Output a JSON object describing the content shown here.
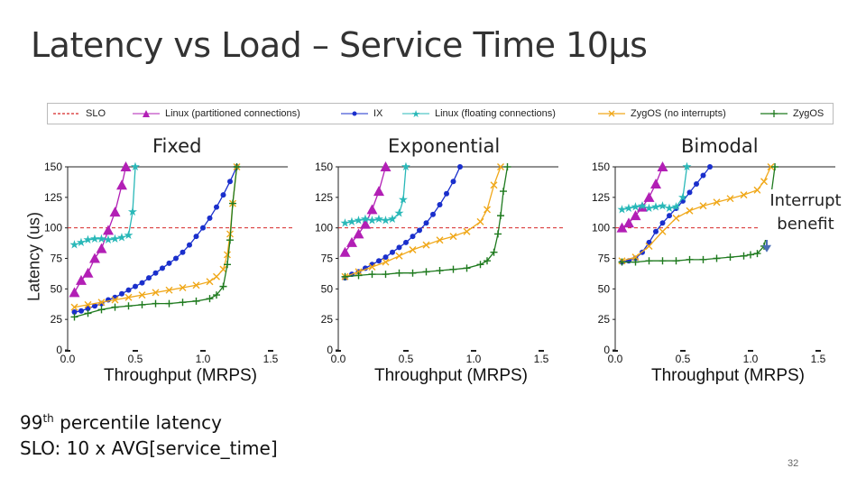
{
  "slide": {
    "title": "Latency vs Load – Service Time 10µs",
    "ylabel": "Latency (us)",
    "note_line1_pre": "99",
    "note_line1_sup": "th",
    "note_line1_post": " percentile latency",
    "note_line2": "SLO: 10 x AVG[service_time]",
    "annotation_line1": "Interrupt",
    "annotation_line2": "benefit",
    "page_number": "32"
  },
  "legend": [
    {
      "label": "SLO",
      "color": "#d62728",
      "style": "dashed",
      "marker": "none"
    },
    {
      "label": "Linux (partitioned connections)",
      "color": "#b21fb5",
      "marker": "triangle"
    },
    {
      "label": "IX",
      "color": "#1a2fcc",
      "marker": "circle"
    },
    {
      "label": "Linux (floating connections)",
      "color": "#29b8b8",
      "marker": "star"
    },
    {
      "label": "ZygOS (no interrupts)",
      "color": "#f0a81a",
      "marker": "x"
    },
    {
      "label": "ZygOS",
      "color": "#1e7a1e",
      "marker": "plus"
    }
  ],
  "chart_data": [
    {
      "type": "line",
      "title": "Fixed",
      "xlabel": "Throughput (MRPS)",
      "ylabel": "Latency (us)",
      "xlim": [
        0.0,
        1.6
      ],
      "ylim": [
        0,
        150
      ],
      "xticks": [
        "0.0",
        "0.5",
        "1.0",
        "1.5"
      ],
      "yticks": [
        "0",
        "25",
        "50",
        "75",
        "100",
        "125",
        "150"
      ],
      "slo": 100,
      "series": [
        {
          "name": "Linux (partitioned connections)",
          "x": [
            0.05,
            0.1,
            0.15,
            0.2,
            0.25,
            0.3,
            0.35,
            0.4,
            0.43
          ],
          "y": [
            47,
            57,
            63,
            75,
            83,
            98,
            113,
            135,
            150
          ]
        },
        {
          "name": "IX",
          "x": [
            0.05,
            0.1,
            0.15,
            0.2,
            0.25,
            0.3,
            0.35,
            0.4,
            0.45,
            0.5,
            0.55,
            0.6,
            0.65,
            0.7,
            0.75,
            0.8,
            0.85,
            0.9,
            0.95,
            1.0,
            1.05,
            1.1,
            1.15,
            1.2,
            1.25
          ],
          "y": [
            31,
            32,
            34,
            36,
            38,
            41,
            43,
            46,
            49,
            52,
            55,
            59,
            63,
            67,
            71,
            75,
            80,
            86,
            93,
            100,
            108,
            117,
            127,
            138,
            150
          ]
        },
        {
          "name": "Linux (floating connections)",
          "x": [
            0.05,
            0.1,
            0.15,
            0.2,
            0.25,
            0.3,
            0.35,
            0.4,
            0.45,
            0.48,
            0.5
          ],
          "y": [
            86,
            88,
            90,
            91,
            91,
            90,
            91,
            92,
            94,
            113,
            150
          ]
        },
        {
          "name": "ZygOS (no interrupts)",
          "x": [
            0.05,
            0.15,
            0.25,
            0.35,
            0.45,
            0.55,
            0.65,
            0.75,
            0.85,
            0.95,
            1.05,
            1.1,
            1.15,
            1.18,
            1.2,
            1.22,
            1.25
          ],
          "y": [
            35,
            37,
            39,
            41,
            43,
            45,
            47,
            49,
            51,
            53,
            56,
            60,
            66,
            78,
            95,
            120,
            150
          ]
        },
        {
          "name": "ZygOS",
          "x": [
            0.05,
            0.15,
            0.25,
            0.35,
            0.45,
            0.55,
            0.65,
            0.75,
            0.85,
            0.95,
            1.05,
            1.1,
            1.15,
            1.18,
            1.2,
            1.22,
            1.25
          ],
          "y": [
            27,
            30,
            33,
            35,
            36,
            37,
            38,
            38,
            39,
            40,
            42,
            45,
            52,
            70,
            90,
            120,
            150
          ]
        }
      ]
    },
    {
      "type": "line",
      "title": "Exponential",
      "xlabel": "Throughput (MRPS)",
      "ylabel": "Latency (us)",
      "xlim": [
        0.0,
        1.6
      ],
      "ylim": [
        0,
        150
      ],
      "xticks": [
        "0.0",
        "0.5",
        "1.0",
        "1.5"
      ],
      "yticks": [
        "0",
        "25",
        "50",
        "75",
        "100",
        "125",
        "150"
      ],
      "slo": 100,
      "series": [
        {
          "name": "Linux (partitioned connections)",
          "x": [
            0.05,
            0.1,
            0.15,
            0.2,
            0.25,
            0.3,
            0.35
          ],
          "y": [
            80,
            88,
            95,
            103,
            115,
            130,
            150
          ]
        },
        {
          "name": "IX",
          "x": [
            0.05,
            0.1,
            0.15,
            0.2,
            0.25,
            0.3,
            0.35,
            0.4,
            0.45,
            0.5,
            0.55,
            0.6,
            0.65,
            0.7,
            0.75,
            0.8,
            0.85,
            0.9
          ],
          "y": [
            59,
            62,
            64,
            67,
            70,
            73,
            76,
            80,
            84,
            88,
            93,
            98,
            104,
            111,
            119,
            128,
            138,
            150
          ]
        },
        {
          "name": "Linux (floating connections)",
          "x": [
            0.05,
            0.1,
            0.15,
            0.2,
            0.25,
            0.3,
            0.35,
            0.4,
            0.45,
            0.48,
            0.5
          ],
          "y": [
            104,
            105,
            106,
            107,
            106,
            107,
            106,
            107,
            112,
            123,
            150
          ]
        },
        {
          "name": "ZygOS (no interrupts)",
          "x": [
            0.05,
            0.15,
            0.25,
            0.35,
            0.45,
            0.55,
            0.65,
            0.75,
            0.85,
            0.95,
            1.05,
            1.1,
            1.15,
            1.2
          ],
          "y": [
            60,
            64,
            68,
            72,
            77,
            82,
            86,
            90,
            93,
            97,
            105,
            115,
            135,
            150
          ]
        },
        {
          "name": "ZygOS",
          "x": [
            0.05,
            0.15,
            0.25,
            0.35,
            0.45,
            0.55,
            0.65,
            0.75,
            0.85,
            0.95,
            1.05,
            1.1,
            1.15,
            1.18,
            1.2,
            1.22,
            1.25
          ],
          "y": [
            60,
            61,
            62,
            62,
            63,
            63,
            64,
            65,
            66,
            67,
            70,
            73,
            80,
            95,
            110,
            130,
            150
          ]
        }
      ]
    },
    {
      "type": "line",
      "title": "Bimodal",
      "xlabel": "Throughput (MRPS)",
      "ylabel": "Latency (us)",
      "xlim": [
        0.0,
        1.6
      ],
      "ylim": [
        0,
        150
      ],
      "xticks": [
        "0.0",
        "0.5",
        "1.0",
        "1.5"
      ],
      "yticks": [
        "0",
        "25",
        "50",
        "75",
        "100",
        "125",
        "150"
      ],
      "slo": 100,
      "series": [
        {
          "name": "Linux (partitioned connections)",
          "x": [
            0.05,
            0.1,
            0.15,
            0.2,
            0.25,
            0.3,
            0.35
          ],
          "y": [
            100,
            104,
            110,
            117,
            125,
            136,
            150
          ]
        },
        {
          "name": "IX",
          "x": [
            0.05,
            0.1,
            0.15,
            0.2,
            0.25,
            0.3,
            0.35,
            0.4,
            0.45,
            0.5,
            0.55,
            0.6,
            0.65,
            0.7
          ],
          "y": [
            72,
            73,
            75,
            80,
            88,
            97,
            104,
            110,
            116,
            122,
            129,
            136,
            143,
            150
          ]
        },
        {
          "name": "Linux (floating connections)",
          "x": [
            0.05,
            0.1,
            0.15,
            0.2,
            0.25,
            0.3,
            0.35,
            0.4,
            0.45,
            0.5,
            0.53
          ],
          "y": [
            115,
            116,
            117,
            118,
            116,
            117,
            118,
            116,
            117,
            125,
            150
          ]
        },
        {
          "name": "ZygOS (no interrupts)",
          "x": [
            0.05,
            0.15,
            0.25,
            0.35,
            0.45,
            0.55,
            0.65,
            0.75,
            0.85,
            0.95,
            1.05,
            1.1,
            1.15
          ],
          "y": [
            73,
            76,
            85,
            97,
            108,
            114,
            118,
            121,
            124,
            127,
            131,
            138,
            150
          ]
        },
        {
          "name": "ZygOS",
          "x": [
            0.05,
            0.15,
            0.25,
            0.35,
            0.45,
            0.55,
            0.65,
            0.75,
            0.85,
            0.95,
            1.0,
            1.05,
            1.1,
            1.13,
            1.15,
            1.18
          ],
          "y": [
            72,
            72,
            73,
            73,
            73,
            74,
            74,
            75,
            76,
            77,
            78,
            79,
            85,
            100,
            125,
            150
          ]
        }
      ]
    }
  ]
}
